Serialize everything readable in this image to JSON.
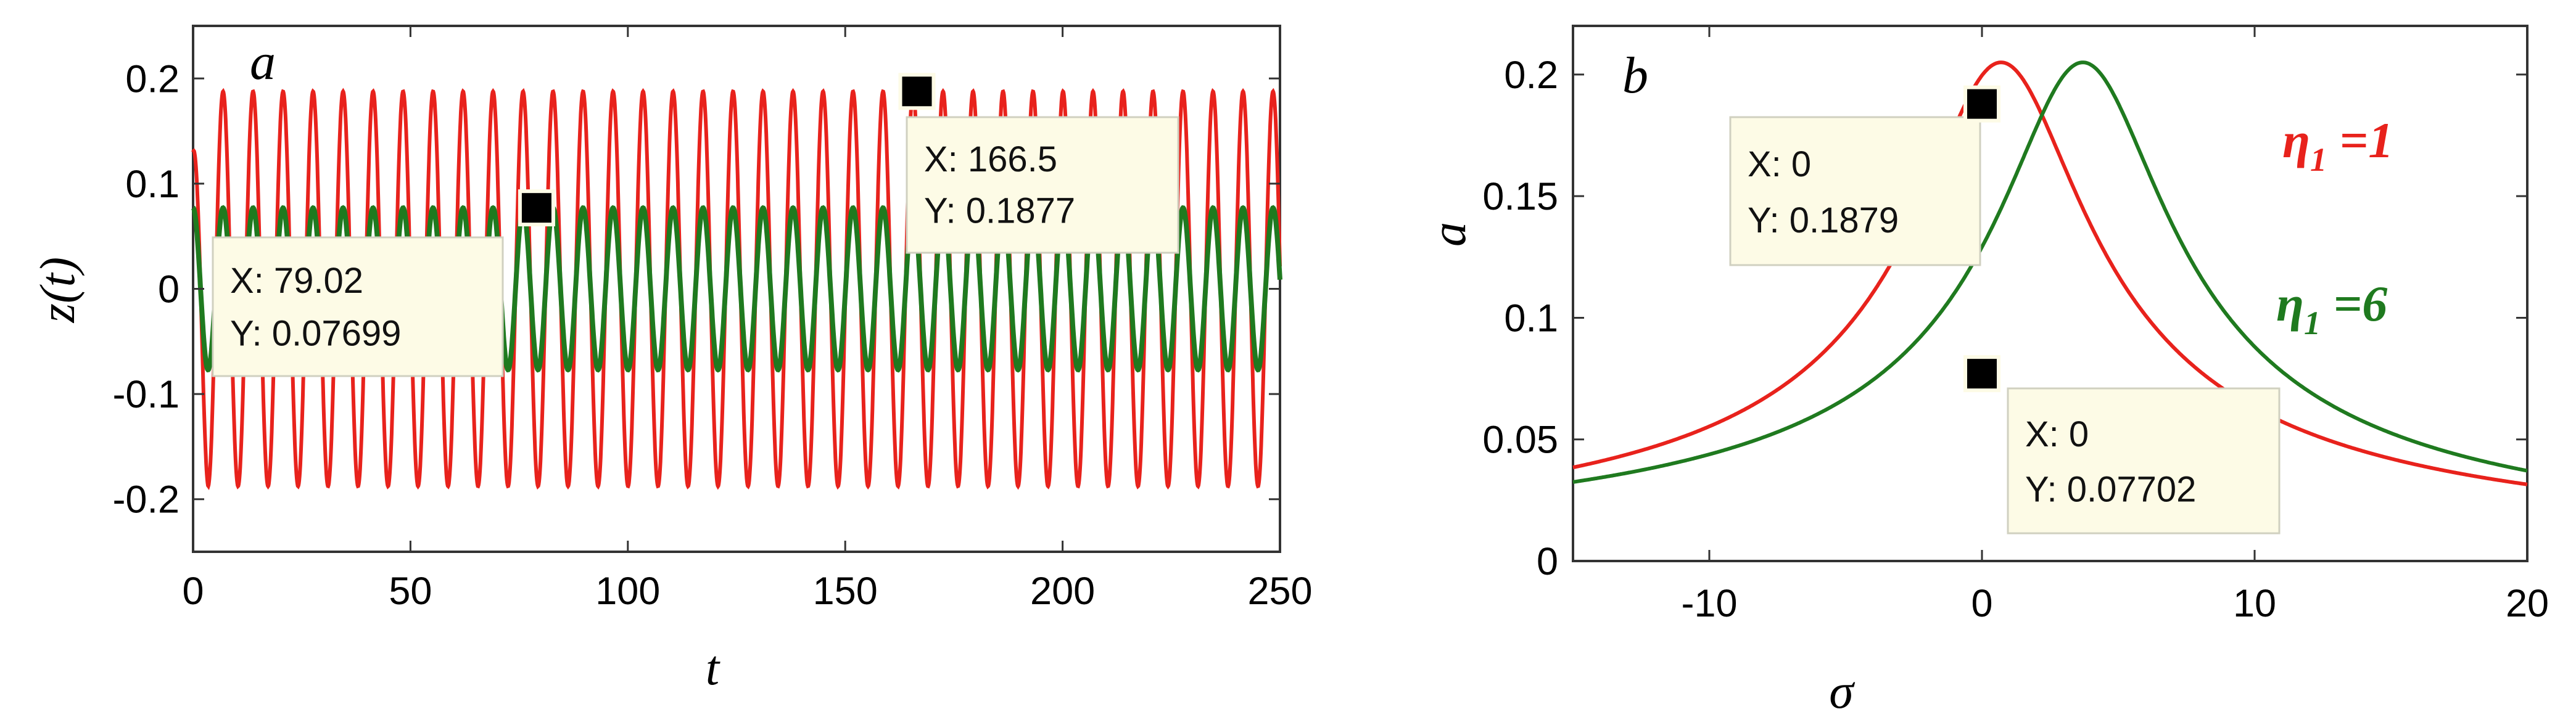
{
  "chart_data": [
    {
      "panel": "a",
      "type": "line",
      "xlabel": "t",
      "ylabel": "z(t)",
      "xlim": [
        0,
        250
      ],
      "ylim": [
        -0.25,
        0.25
      ],
      "xticks": [
        "0",
        "50",
        "100",
        "150",
        "200",
        "250"
      ],
      "yticks": [
        "-0.2",
        "-0.1",
        "0",
        "0.1",
        "0.2"
      ],
      "xtick_values": [
        0,
        50,
        100,
        150,
        200,
        250
      ],
      "ytick_values": [
        -0.2,
        -0.1,
        0,
        0.1,
        0.2
      ],
      "grid": false,
      "series": [
        {
          "color": "#e8221c",
          "amplitude": 0.1877,
          "period": 6.9,
          "phase": 0.0,
          "initial_peak": 0.13
        },
        {
          "color": "#1f7a1f",
          "amplitude": 0.07699,
          "period": 6.9,
          "phase": 0.0
        }
      ],
      "datatips": [
        {
          "x_text": "X: 79.02",
          "y_text": "Y: 0.07699",
          "x": 79.02,
          "y": 0.07699
        },
        {
          "x_text": "X: 166.5",
          "y_text": "Y: 0.1877",
          "x": 166.5,
          "y": 0.1877
        }
      ]
    },
    {
      "panel": "b",
      "type": "line",
      "xlabel": "σ",
      "ylabel": "a",
      "xlim": [
        -15,
        20
      ],
      "ylim": [
        0,
        0.22
      ],
      "xticks": [
        "-10",
        "0",
        "10",
        "20"
      ],
      "yticks": [
        "0",
        "0.05",
        "0.1",
        "0.15",
        "0.2"
      ],
      "xtick_values": [
        -10,
        0,
        10,
        20
      ],
      "ytick_values": [
        0,
        0.05,
        0.1,
        0.15,
        0.2
      ],
      "grid": false,
      "series": [
        {
          "name": "η1 =1",
          "color": "#e8221c",
          "peak_sigma": 0.7,
          "peak_a": 0.205,
          "width": 3.0
        },
        {
          "name": "η1 =6",
          "color": "#1f7a1f",
          "peak_sigma": 3.7,
          "peak_a": 0.205,
          "width": 3.0
        }
      ],
      "legend": [
        {
          "base": "η",
          "sub": "1",
          "rest": " =1",
          "color": "#e8221c"
        },
        {
          "base": "η",
          "sub": "1",
          "rest": " =6",
          "color": "#1f7a1f"
        }
      ],
      "datatips": [
        {
          "x_text": "X: 0",
          "y_text": "Y: 0.1879",
          "x": 0,
          "y": 0.1879
        },
        {
          "x_text": "X: 0",
          "y_text": "Y: 0.07702",
          "x": 0,
          "y": 0.07702
        }
      ]
    }
  ]
}
